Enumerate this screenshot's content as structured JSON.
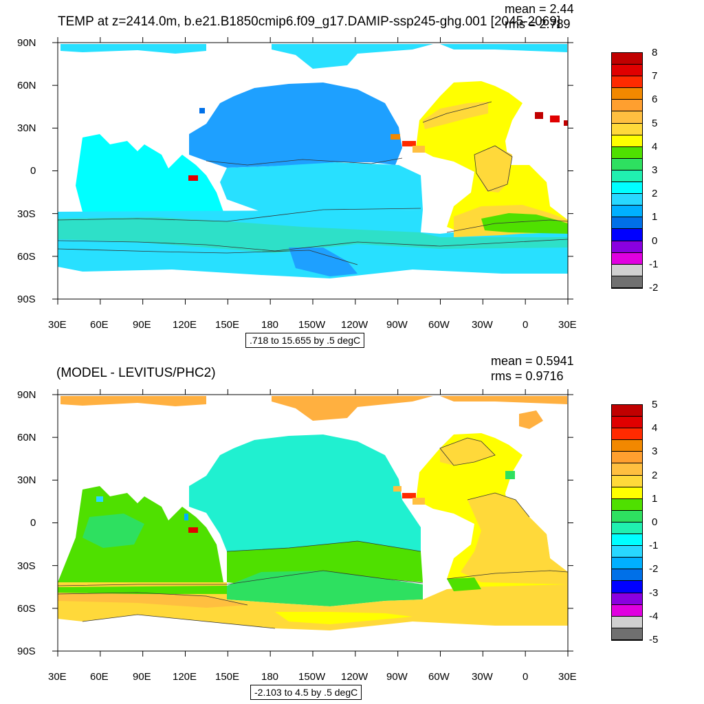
{
  "top": {
    "title": "TEMP at z=2414.0m, b.e21.B1850cmip6.f09_g17.DAMIP-ssp245-ghg.001 [2045-2069]",
    "mean": "mean = 2.44",
    "rms": "rms = 2.789",
    "range": ".718 to 15.655 by .5 degC",
    "colorbar_labels": [
      "8",
      "7",
      "6",
      "5",
      "4",
      "3",
      "2",
      "1",
      "0",
      "-1",
      "-2"
    ]
  },
  "bottom": {
    "title": "(MODEL - LEVITUS/PHC2)",
    "mean": "mean = 0.5941",
    "rms": "rms = 0.9716",
    "range": "-2.103 to 4.5 by .5 degC",
    "colorbar_labels": [
      "5",
      "4",
      "3",
      "2",
      "1",
      "0",
      "-1",
      "-2",
      "-3",
      "-4",
      "-5"
    ]
  },
  "axes": {
    "lon_ticks": [
      "30E",
      "60E",
      "90E",
      "120E",
      "150E",
      "180",
      "150W",
      "120W",
      "90W",
      "60W",
      "30W",
      "0",
      "30E"
    ],
    "lat_ticks": [
      "90N",
      "60N",
      "30N",
      "0",
      "30S",
      "60S",
      "90S"
    ]
  },
  "colorbar_colors": [
    "#c00000",
    "#e00000",
    "#ff2a00",
    "#f28800",
    "#ff9f2f",
    "#ffbf40",
    "#ffd93a",
    "#ffff00",
    "#4fe000",
    "#2ee060",
    "#20f0b0",
    "#00ffff",
    "#28d8ff",
    "#00b0ff",
    "#0070e8",
    "#0000ff",
    "#8a00e0",
    "#e000e0",
    "#d0d0d0",
    "#707070"
  ],
  "colors": {
    "top_pacific": "#1ea0ff",
    "top_indian": "#00ffff",
    "top_south": "#28e0ff",
    "top_atlantic": "#ffff00",
    "top_atlantic_core": "#ffd93a",
    "bot_pacific": "#20f0d0",
    "bot_south": "#4fe000",
    "bot_atlantic": "#ffd93a",
    "bot_arctic": "#ffb040"
  }
}
